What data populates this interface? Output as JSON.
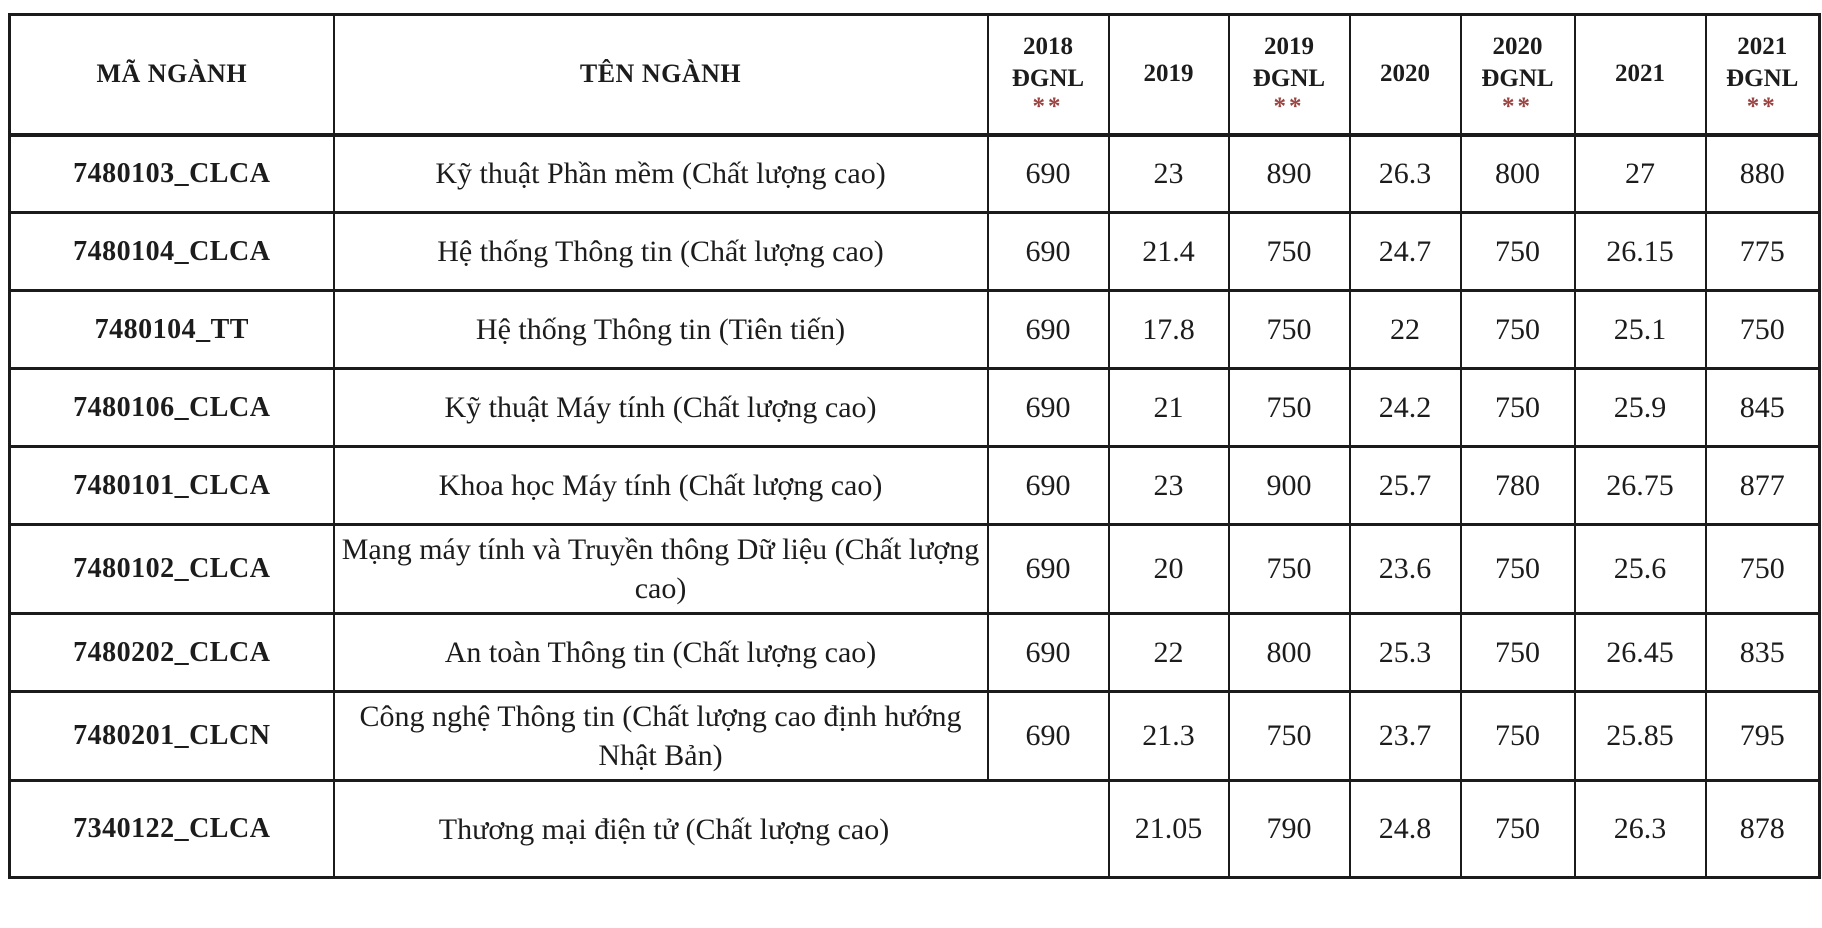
{
  "colors": {
    "asterisk": "#9a4340",
    "border": "#1b1b1b",
    "text": "#1c1c1c",
    "background": "#ffffff"
  },
  "table": {
    "columns": [
      {
        "key": "ma-nganh",
        "label": "MÃ NGÀNH",
        "type": "text"
      },
      {
        "key": "ten-nganh",
        "label": "TÊN NGÀNH",
        "type": "text"
      },
      {
        "key": "dgnl-2018",
        "label": "2018",
        "sublabel": "ĐGNL",
        "asterisks": "**"
      },
      {
        "key": "2019",
        "label": "2019"
      },
      {
        "key": "dgnl-2019",
        "label": "2019",
        "sublabel": "ĐGNL",
        "asterisks": "**"
      },
      {
        "key": "2020",
        "label": "2020"
      },
      {
        "key": "dgnl-2020",
        "label": "2020",
        "sublabel": "ĐGNL",
        "asterisks": "**"
      },
      {
        "key": "2021",
        "label": "2021"
      },
      {
        "key": "dgnl-2021",
        "label": "2021",
        "sublabel": "ĐGNL",
        "asterisks": "**"
      }
    ],
    "rows": [
      {
        "code": "7480103_CLCA",
        "name": "Kỹ thuật Phần mềm (Chất lượng cao)",
        "values": [
          "690",
          "23",
          "890",
          "26.3",
          "800",
          "27",
          "880"
        ]
      },
      {
        "code": "7480104_CLCA",
        "name": "Hệ thống Thông tin (Chất lượng cao)",
        "values": [
          "690",
          "21.4",
          "750",
          "24.7",
          "750",
          "26.15",
          "775"
        ]
      },
      {
        "code": "7480104_TT",
        "name": "Hệ thống Thông tin (Tiên tiến)",
        "values": [
          "690",
          "17.8",
          "750",
          "22",
          "750",
          "25.1",
          "750"
        ]
      },
      {
        "code": "7480106_CLCA",
        "name": "Kỹ thuật Máy tính (Chất lượng cao)",
        "values": [
          "690",
          "21",
          "750",
          "24.2",
          "750",
          "25.9",
          "845"
        ]
      },
      {
        "code": "7480101_CLCA",
        "name": "Khoa học Máy tính (Chất lượng cao)",
        "values": [
          "690",
          "23",
          "900",
          "25.7",
          "780",
          "26.75",
          "877"
        ]
      },
      {
        "code": "7480102_CLCA",
        "name": "Mạng máy tính và Truyền thông Dữ liệu (Chất lượng cao)",
        "values": [
          "690",
          "20",
          "750",
          "23.6",
          "750",
          "25.6",
          "750"
        ]
      },
      {
        "code": "7480202_CLCA",
        "name": "An toàn Thông tin (Chất lượng cao)",
        "values": [
          "690",
          "22",
          "800",
          "25.3",
          "750",
          "26.45",
          "835"
        ]
      },
      {
        "code": "7480201_CLCN",
        "name": "Công nghệ Thông tin (Chất lượng cao định hướng Nhật Bản)",
        "values": [
          "690",
          "21.3",
          "750",
          "23.7",
          "750",
          "25.85",
          "795"
        ]
      },
      {
        "code": "7340122_CLCA",
        "name": "Thương mại điện tử (Chất lượng cao)",
        "values": [
          "",
          "21.05",
          "790",
          "24.8",
          "750",
          "26.3",
          "878"
        ],
        "name_spans_empty_2018": true
      }
    ]
  }
}
